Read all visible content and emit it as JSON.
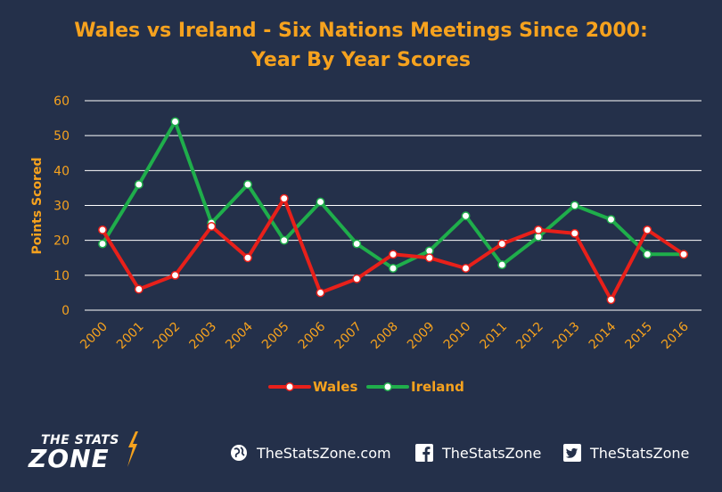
{
  "title_line1": "Wales vs Ireland - Six Nations Meetings Since 2000:",
  "title_line2": "Year By Year Scores",
  "colors": {
    "background": "#24304a",
    "title": "#f6a21e",
    "axis_text": "#f6a21e",
    "grid": "#ffffff",
    "wales": "#e8201a",
    "ireland": "#1fae4b"
  },
  "chart_data": {
    "type": "line",
    "title": "Wales vs Ireland - Six Nations Meetings Since 2000: Year By Year Scores",
    "xlabel": "",
    "ylabel": "Points Scored",
    "ylim": [
      0,
      60
    ],
    "yticks": [
      0,
      10,
      20,
      30,
      40,
      50,
      60
    ],
    "grid": true,
    "legend": "bottom",
    "categories": [
      "2000",
      "2001",
      "2002",
      "2003",
      "2004",
      "2005",
      "2006",
      "2007",
      "2008",
      "2009",
      "2010",
      "2011",
      "2012",
      "2013",
      "2014",
      "2015",
      "2016"
    ],
    "series": [
      {
        "name": "Wales",
        "color": "#e8201a",
        "values": [
          23,
          6,
          10,
          24,
          15,
          32,
          5,
          9,
          16,
          15,
          12,
          19,
          23,
          22,
          3,
          23,
          16
        ]
      },
      {
        "name": "Ireland",
        "color": "#1fae4b",
        "values": [
          19,
          36,
          54,
          25,
          36,
          20,
          31,
          19,
          12,
          17,
          27,
          13,
          21,
          30,
          26,
          16,
          16
        ]
      }
    ]
  },
  "footer": {
    "brand_line1": "THE STATS",
    "brand_line2": "ZONE",
    "website": "TheStatsZone.com",
    "facebook": "TheStatsZone",
    "twitter": "TheStatsZone"
  }
}
